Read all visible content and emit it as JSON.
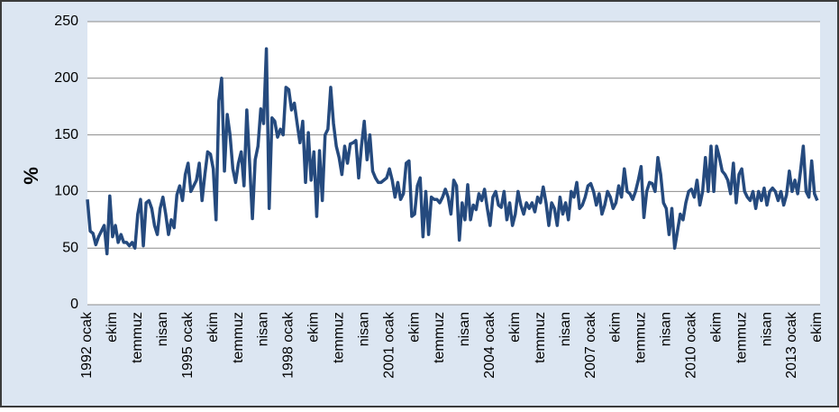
{
  "chart_data": {
    "type": "line",
    "y_label": "%",
    "ylim": [
      0,
      250
    ],
    "yticks": [
      0,
      50,
      100,
      150,
      200,
      250
    ],
    "grid": true,
    "categories": [
      "1992 ocak",
      null,
      null,
      null,
      null,
      null,
      null,
      null,
      null,
      "ekim",
      null,
      null,
      null,
      null,
      null,
      null,
      null,
      null,
      "temmuz",
      null,
      null,
      null,
      null,
      null,
      null,
      null,
      null,
      "nisan",
      null,
      null,
      null,
      null,
      null,
      null,
      null,
      null,
      "1995 ocak",
      null,
      null,
      null,
      null,
      null,
      null,
      null,
      null,
      "ekim",
      null,
      null,
      null,
      null,
      null,
      null,
      null,
      null,
      "temmuz",
      null,
      null,
      null,
      null,
      null,
      null,
      null,
      null,
      "nisan",
      null,
      null,
      null,
      null,
      null,
      null,
      null,
      null,
      "1998 ocak",
      null,
      null,
      null,
      null,
      null,
      null,
      null,
      null,
      "ekim",
      null,
      null,
      null,
      null,
      null,
      null,
      null,
      null,
      "temmuz",
      null,
      null,
      null,
      null,
      null,
      null,
      null,
      null,
      "nisan",
      null,
      null,
      null,
      null,
      null,
      null,
      null,
      null,
      "2001 ocak",
      null,
      null,
      null,
      null,
      null,
      null,
      null,
      null,
      "ekim",
      null,
      null,
      null,
      null,
      null,
      null,
      null,
      null,
      "temmuz",
      null,
      null,
      null,
      null,
      null,
      null,
      null,
      null,
      "nisan",
      null,
      null,
      null,
      null,
      null,
      null,
      null,
      null,
      "2004 ocak",
      null,
      null,
      null,
      null,
      null,
      null,
      null,
      null,
      "ekim",
      null,
      null,
      null,
      null,
      null,
      null,
      null,
      null,
      "temmuz",
      null,
      null,
      null,
      null,
      null,
      null,
      null,
      null,
      "nisan",
      null,
      null,
      null,
      null,
      null,
      null,
      null,
      null,
      "2007 ocak",
      null,
      null,
      null,
      null,
      null,
      null,
      null,
      null,
      "ekim",
      null,
      null,
      null,
      null,
      null,
      null,
      null,
      null,
      "temmuz",
      null,
      null,
      null,
      null,
      null,
      null,
      null,
      null,
      "nisan",
      null,
      null,
      null,
      null,
      null,
      null,
      null,
      null,
      "2010 ocak",
      null,
      null,
      null,
      null,
      null,
      null,
      null,
      null,
      "ekim",
      null,
      null,
      null,
      null,
      null,
      null,
      null,
      null,
      "temmuz",
      null,
      null,
      null,
      null,
      null,
      null,
      null,
      null,
      "nisan",
      null,
      null,
      null,
      null,
      null,
      null,
      null,
      null,
      "2013 ocak",
      null,
      null,
      null,
      null,
      null,
      null,
      null,
      null,
      "ekim"
    ],
    "series": [
      {
        "color": "#254a7e",
        "values": [
          93,
          65,
          63,
          53,
          60,
          65,
          70,
          45,
          96,
          60,
          70,
          55,
          62,
          55,
          55,
          52,
          55,
          50,
          80,
          93,
          52,
          90,
          92,
          85,
          70,
          62,
          85,
          95,
          80,
          62,
          75,
          68,
          97,
          105,
          92,
          115,
          125,
          100,
          105,
          110,
          125,
          92,
          115,
          135,
          133,
          120,
          75,
          180,
          200,
          118,
          168,
          150,
          120,
          108,
          125,
          135,
          105,
          172,
          125,
          76,
          128,
          140,
          173,
          160,
          226,
          85,
          165,
          162,
          148,
          155,
          150,
          192,
          190,
          172,
          178,
          160,
          143,
          162,
          108,
          152,
          110,
          135,
          78,
          136,
          92,
          150,
          155,
          192,
          160,
          140,
          130,
          115,
          140,
          125,
          142,
          143,
          145,
          112,
          140,
          162,
          128,
          150,
          118,
          112,
          108,
          108,
          110,
          112,
          120,
          110,
          95,
          108,
          93,
          98,
          125,
          127,
          78,
          80,
          105,
          112,
          60,
          100,
          62,
          95,
          93,
          93,
          90,
          95,
          102,
          95,
          80,
          110,
          105,
          57,
          90,
          75,
          106,
          75,
          88,
          84,
          98,
          92,
          102,
          85,
          70,
          95,
          100,
          88,
          86,
          100,
          75,
          90,
          70,
          80,
          100,
          88,
          80,
          90,
          85,
          90,
          82,
          95,
          90,
          104,
          90,
          70,
          90,
          85,
          70,
          95,
          80,
          90,
          75,
          100,
          95,
          108,
          85,
          88,
          95,
          105,
          107,
          100,
          88,
          98,
          80,
          88,
          100,
          95,
          85,
          90,
          105,
          95,
          120,
          100,
          98,
          93,
          100,
          110,
          122,
          77,
          100,
          108,
          107,
          100,
          130,
          115,
          90,
          85,
          62,
          85,
          50,
          65,
          80,
          75,
          90,
          100,
          102,
          95,
          110,
          88,
          100,
          130,
          100,
          140,
          100,
          140,
          130,
          118,
          115,
          110,
          98,
          125,
          90,
          115,
          120,
          100,
          95,
          92,
          100,
          85,
          100,
          92,
          103,
          88,
          100,
          103,
          100,
          92,
          100,
          88,
          97,
          118,
          100,
          110,
          98,
          118,
          140,
          100,
          95,
          127,
          98,
          92
        ]
      }
    ]
  }
}
